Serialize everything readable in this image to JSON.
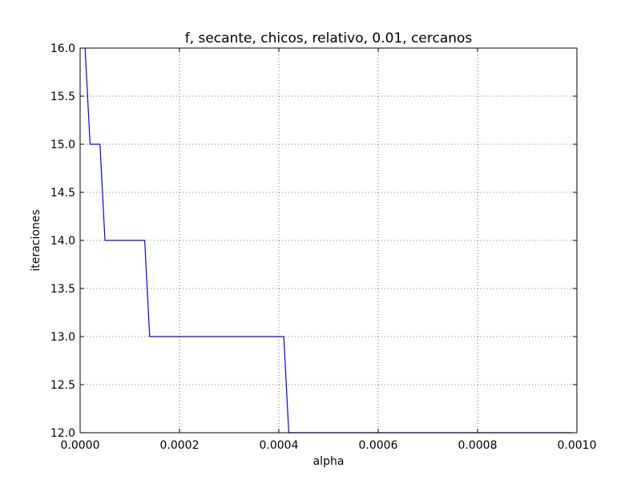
{
  "chart_data": {
    "type": "line",
    "title": "f, secante, chicos, relativo, 0.01, cercanos",
    "xlabel": "alpha",
    "ylabel": "iteraciones",
    "xlim": [
      0.0,
      0.001
    ],
    "ylim": [
      12.0,
      16.0
    ],
    "xticks": [
      0.0,
      0.0002,
      0.0004,
      0.0006,
      0.0008,
      0.001
    ],
    "xtick_labels": [
      "0.0000",
      "0.0002",
      "0.0004",
      "0.0006",
      "0.0008",
      "0.0010"
    ],
    "yticks": [
      12.0,
      12.5,
      13.0,
      13.5,
      14.0,
      14.5,
      15.0,
      15.5,
      16.0
    ],
    "ytick_labels": [
      "12.0",
      "12.5",
      "13.0",
      "13.5",
      "14.0",
      "14.5",
      "15.0",
      "15.5",
      "16.0"
    ],
    "grid": true,
    "series": [
      {
        "color": "#0000ff",
        "x": [
          1e-05,
          2e-05,
          4e-05,
          5e-05,
          0.00013,
          0.00014,
          0.00041,
          0.00042,
          0.00099
        ],
        "y": [
          16,
          15,
          15,
          14,
          14,
          13,
          13,
          12,
          12
        ]
      }
    ]
  }
}
